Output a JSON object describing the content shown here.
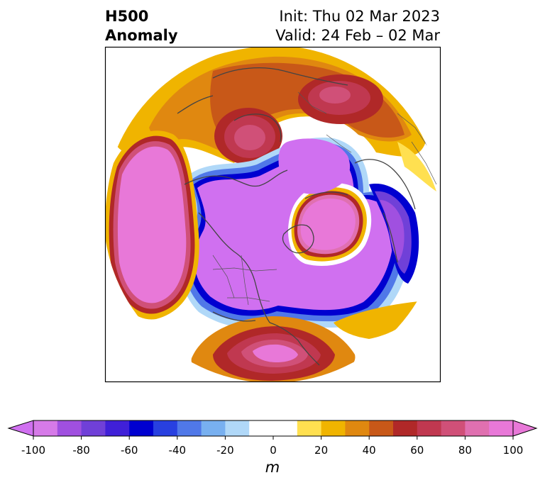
{
  "title": {
    "left_line1": "H500",
    "left_line2": "Anomaly",
    "right_line1": "Init: Thu 02 Mar 2023",
    "right_line2": "Valid: 24 Feb – 02 Mar"
  },
  "colorbar": {
    "unit": "m",
    "ticks": [
      "-100",
      "-80",
      "-60",
      "-40",
      "-20",
      "0",
      "20",
      "40",
      "60",
      "80",
      "100"
    ],
    "levels": [
      -100,
      -90,
      -80,
      -70,
      -60,
      -50,
      -40,
      -30,
      -20,
      -10,
      10,
      20,
      30,
      40,
      50,
      60,
      70,
      80,
      90,
      100
    ],
    "colors": [
      "#d67ae8",
      "#a050e0",
      "#7040d8",
      "#4020d8",
      "#0000d0",
      "#2840e0",
      "#5078e8",
      "#78b0f0",
      "#b0d8f8",
      "#ffffff",
      "#ffe050",
      "#f0b400",
      "#e08810",
      "#c85818",
      "#b02828",
      "#c03850",
      "#d05078",
      "#e070b0",
      "#e878d8"
    ],
    "under_color": "#d070f0",
    "over_color": "#e878d8"
  },
  "map": {
    "projection": "north polar stereographic",
    "anomaly_centers": [
      {
        "region": "eastern North Pacific",
        "sign": "negative",
        "value": -100
      },
      {
        "region": "northern Canada / Arctic",
        "sign": "negative",
        "value": -100
      },
      {
        "region": "Greenland / North Atlantic",
        "sign": "positive",
        "value": 100
      },
      {
        "region": "central Siberia",
        "sign": "positive",
        "value": 60
      },
      {
        "region": "Scandinavia / Europe",
        "sign": "negative",
        "value": -80
      },
      {
        "region": "southeastern United States",
        "sign": "positive",
        "value": 100
      },
      {
        "region": "Aleutians / Bering",
        "sign": "positive",
        "value": 60
      },
      {
        "region": "western North Pacific",
        "sign": "positive",
        "value": 100
      }
    ]
  }
}
